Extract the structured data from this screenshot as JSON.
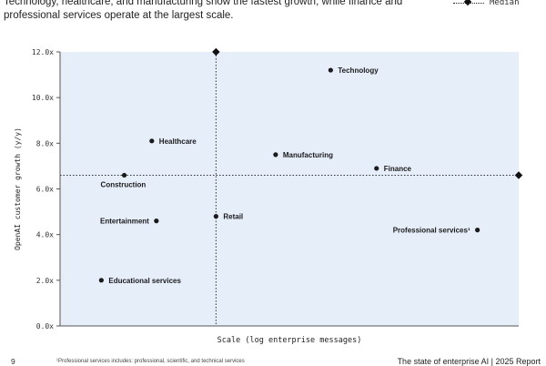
{
  "subtitle": "Technology, healthcare, and manufacturing show the fastest growth, while finance and professional services operate at the largest scale.",
  "legend": {
    "median_label": "Median"
  },
  "footer": {
    "page_number": "9",
    "footnote": "¹Professional services includes: professional, scientific, and technical services",
    "report_title": "The state of enterprise AI | 2025 Report"
  },
  "colors": {
    "quadrant_fill": "#e6eefa",
    "point": "#1a1a1a",
    "median_line": "#333333"
  },
  "chart_data": {
    "type": "scatter",
    "xlabel": "Scale (log enterprise messages)",
    "ylabel": "OpenAI customer growth (y/y)",
    "ylim": [
      0,
      12
    ],
    "yticks": [
      0,
      2,
      4,
      6,
      8,
      10,
      12
    ],
    "ytick_labels": [
      "0.0x",
      "2.0x",
      "4.0x",
      "6.0x",
      "8.0x",
      "10.0x",
      "12.0x"
    ],
    "xlim": [
      0,
      100
    ],
    "x_tick_labels_shown": false,
    "median": {
      "x": 34,
      "y": 6.6
    },
    "points": [
      {
        "label": "Technology",
        "x": 59,
        "y": 11.2,
        "label_side": "right"
      },
      {
        "label": "Healthcare",
        "x": 20,
        "y": 8.1,
        "label_side": "right"
      },
      {
        "label": "Manufacturing",
        "x": 47,
        "y": 7.5,
        "label_side": "right"
      },
      {
        "label": "Finance",
        "x": 69,
        "y": 6.9,
        "label_side": "right"
      },
      {
        "label": "Construction",
        "x": 14,
        "y": 6.6,
        "label_side": "below"
      },
      {
        "label": "Entertainment",
        "x": 21,
        "y": 4.6,
        "label_side": "left"
      },
      {
        "label": "Retail",
        "x": 34,
        "y": 4.8,
        "label_side": "right"
      },
      {
        "label": "Professional services¹",
        "x": 91,
        "y": 4.2,
        "label_side": "left"
      },
      {
        "label": "Educational services",
        "x": 9,
        "y": 2.0,
        "label_side": "right"
      }
    ]
  }
}
